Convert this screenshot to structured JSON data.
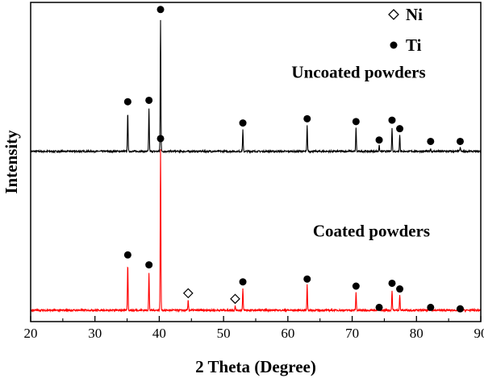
{
  "chart_data": {
    "type": "line",
    "title": "",
    "xlabel": "2 Theta (Degree)",
    "ylabel": "Intensity",
    "xlim": [
      20,
      90
    ],
    "x_ticks": [
      20,
      30,
      40,
      50,
      60,
      70,
      80,
      90
    ],
    "x_minor_ticks": [
      25,
      35,
      45,
      55,
      65,
      75,
      85
    ],
    "y_ticks_shown": false,
    "ylim": [
      0,
      2.25
    ],
    "grid": false,
    "legend": {
      "placement": "top-right",
      "entries": [
        {
          "label": "Ni",
          "marker": "open-diamond"
        },
        {
          "label": "Ti",
          "marker": "filled-circle"
        }
      ]
    },
    "series": [
      {
        "label": "Uncoated powders",
        "color": "#000000",
        "baseline": 1.2,
        "peaks": [
          {
            "x": 35.1,
            "height": 0.28
          },
          {
            "x": 38.4,
            "height": 0.3
          },
          {
            "x": 40.2,
            "height": 0.93
          },
          {
            "x": 53.0,
            "height": 0.15
          },
          {
            "x": 63.0,
            "height": 0.18
          },
          {
            "x": 70.6,
            "height": 0.17
          },
          {
            "x": 74.2,
            "height": 0.04
          },
          {
            "x": 76.2,
            "height": 0.17
          },
          {
            "x": 77.4,
            "height": 0.12
          },
          {
            "x": 82.2,
            "height": 0.02
          },
          {
            "x": 86.8,
            "height": 0.03
          }
        ],
        "markers": [
          {
            "x": 35.1,
            "y": 1.55,
            "symbol": "Ti"
          },
          {
            "x": 38.4,
            "y": 1.56,
            "symbol": "Ti"
          },
          {
            "x": 40.2,
            "y": 2.2,
            "symbol": "Ti"
          },
          {
            "x": 53.0,
            "y": 1.4,
            "symbol": "Ti"
          },
          {
            "x": 63.0,
            "y": 1.43,
            "symbol": "Ti"
          },
          {
            "x": 70.6,
            "y": 1.41,
            "symbol": "Ti"
          },
          {
            "x": 74.2,
            "y": 1.28,
            "symbol": "Ti"
          },
          {
            "x": 76.2,
            "y": 1.42,
            "symbol": "Ti"
          },
          {
            "x": 77.4,
            "y": 1.36,
            "symbol": "Ti"
          },
          {
            "x": 82.2,
            "y": 1.27,
            "symbol": "Ti"
          },
          {
            "x": 86.8,
            "y": 1.27,
            "symbol": "Ti"
          }
        ]
      },
      {
        "label": "Coated powders",
        "color": "#ff0000",
        "baseline": 0.08,
        "peaks": [
          {
            "x": 35.1,
            "height": 0.33
          },
          {
            "x": 38.4,
            "height": 0.26
          },
          {
            "x": 40.2,
            "height": 1.14
          },
          {
            "x": 44.5,
            "height": 0.07
          },
          {
            "x": 51.8,
            "height": 0.03
          },
          {
            "x": 53.0,
            "height": 0.15
          },
          {
            "x": 63.0,
            "height": 0.18
          },
          {
            "x": 70.6,
            "height": 0.13
          },
          {
            "x": 74.2,
            "height": 0.03
          },
          {
            "x": 76.2,
            "height": 0.14
          },
          {
            "x": 77.4,
            "height": 0.11
          },
          {
            "x": 82.2,
            "height": 0.02
          },
          {
            "x": 86.8,
            "height": 0.02
          }
        ],
        "markers": [
          {
            "x": 35.1,
            "y": 0.47,
            "symbol": "Ti"
          },
          {
            "x": 38.4,
            "y": 0.4,
            "symbol": "Ti"
          },
          {
            "x": 40.2,
            "y": 1.29,
            "symbol": "Ti"
          },
          {
            "x": 44.5,
            "y": 0.2,
            "symbol": "Ni"
          },
          {
            "x": 51.8,
            "y": 0.16,
            "symbol": "Ni"
          },
          {
            "x": 53.0,
            "y": 0.28,
            "symbol": "Ti"
          },
          {
            "x": 63.0,
            "y": 0.3,
            "symbol": "Ti"
          },
          {
            "x": 70.6,
            "y": 0.25,
            "symbol": "Ti"
          },
          {
            "x": 74.2,
            "y": 0.1,
            "symbol": "Ti"
          },
          {
            "x": 76.2,
            "y": 0.27,
            "symbol": "Ti"
          },
          {
            "x": 77.4,
            "y": 0.23,
            "symbol": "Ti"
          },
          {
            "x": 82.2,
            "y": 0.1,
            "symbol": "Ti"
          },
          {
            "x": 86.8,
            "y": 0.09,
            "symbol": "Ti"
          }
        ]
      }
    ],
    "annotations": [
      {
        "text": "Uncoated powders",
        "x": 71,
        "y": 1.72
      },
      {
        "text": "Coated powders",
        "x": 73,
        "y": 0.6
      }
    ]
  }
}
